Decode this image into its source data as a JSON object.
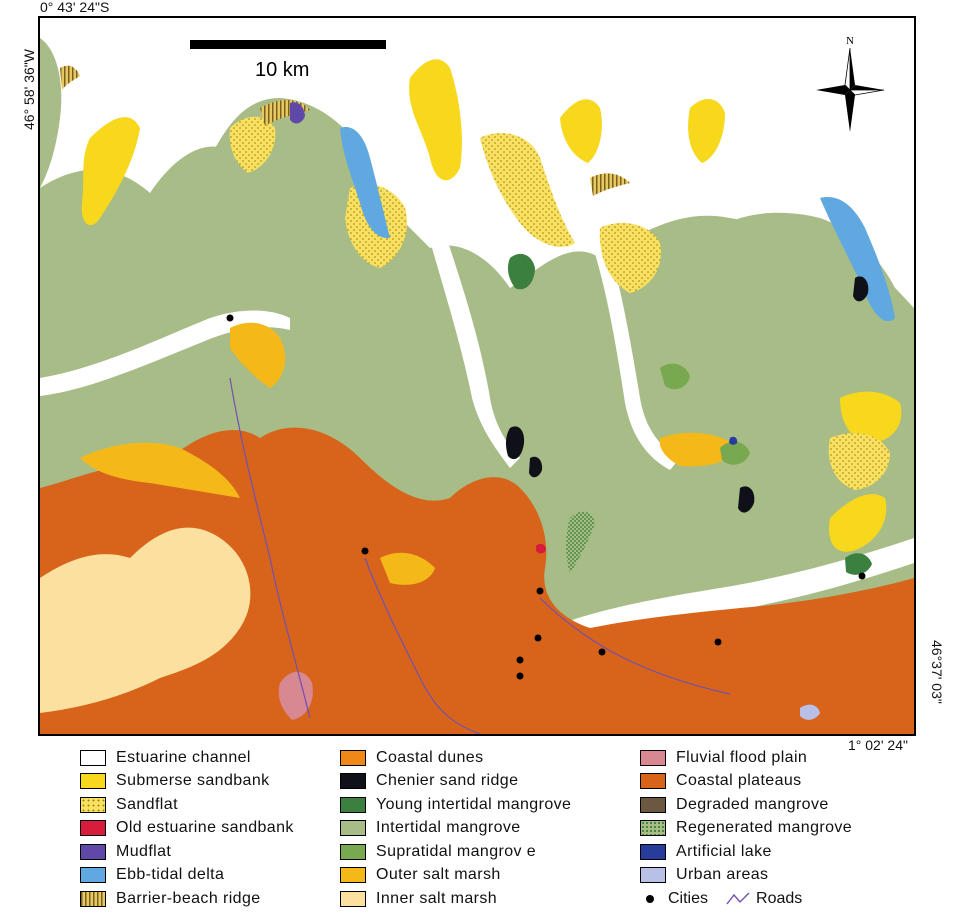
{
  "coordinates": {
    "top_left_lat": "0° 43' 24\"S",
    "top_left_lon": "46° 58' 36\"W",
    "bottom_right_lat": "1° 02' 24\"",
    "bottom_right_lon": "46°37' 03\""
  },
  "scale_bar": {
    "label": "10 km"
  },
  "north_arrow": {
    "label": "N"
  },
  "colors": {
    "estuarine_channel": "#ffffff",
    "submerse_sandbank": "#f8d81c",
    "sandflat": "#f8e060",
    "old_estuarine_sandbank": "#d81c3c",
    "mudflat": "#6048a8",
    "ebb_tidal_delta": "#60a8e0",
    "barrier_beach_ridge": "#c8a850",
    "coastal_dunes": "#f08818",
    "chenier_sand_ridge": "#101018",
    "young_intertidal_mangrove": "#3c8040",
    "intertidal_mangrove": "#a8bc88",
    "supratidal_mangrove": "#78a850",
    "outer_salt_marsh": "#f4b818",
    "inner_salt_marsh": "#fce0a0",
    "fluvial_flood_plain": "#d88890",
    "coastal_plateaus": "#d8641c",
    "degraded_mangrove": "#6c5840",
    "regenerated_mangrove": "#58a048",
    "artificial_lake": "#283c9c",
    "urban_areas": "#b8c0e8",
    "roads": "#7050b0"
  },
  "legend": {
    "col1": [
      {
        "label": "Estuarine  channel",
        "color": "#ffffff"
      },
      {
        "label": "Submerse sandbank",
        "color": "#f8d81c"
      },
      {
        "label": "Sandflat",
        "color": "#f8e060"
      },
      {
        "label": "Old  estuarine sandbank",
        "color": "#d81c3c"
      },
      {
        "label": "Mudflat",
        "color": "#6048a8"
      },
      {
        "label": "Ebb-tidal delta",
        "color": "#60a8e0"
      },
      {
        "label": "Barrier-beach ridge",
        "color": "#c8a850"
      }
    ],
    "col2": [
      {
        "label": "Coastal dunes",
        "color": "#f08818"
      },
      {
        "label": "Chenier sand ridge",
        "color": "#101018"
      },
      {
        "label": "Young intertidal mangrove",
        "color": "#3c8040"
      },
      {
        "label": "Intertidal mangrove",
        "color": "#a8bc88"
      },
      {
        "label": "Supratidal mangrov e",
        "color": "#78a850"
      },
      {
        "label": "Outer salt marsh",
        "color": "#f4b818"
      },
      {
        "label": "Inner salt marsh",
        "color": "#fce0a0"
      }
    ],
    "col3": [
      {
        "label": "Fluvial flood plain",
        "color": "#d88890"
      },
      {
        "label": "Coastal plateaus",
        "color": "#d8641c"
      },
      {
        "label": "Degraded mangrove",
        "color": "#6c5840"
      },
      {
        "label": "Regenerated mangrove",
        "color": "#58a048"
      },
      {
        "label": "Artificial lake",
        "color": "#283c9c"
      },
      {
        "label": "Urban areas",
        "color": "#b8c0e8"
      }
    ],
    "cities_label": "Cities",
    "roads_label": "Roads"
  }
}
